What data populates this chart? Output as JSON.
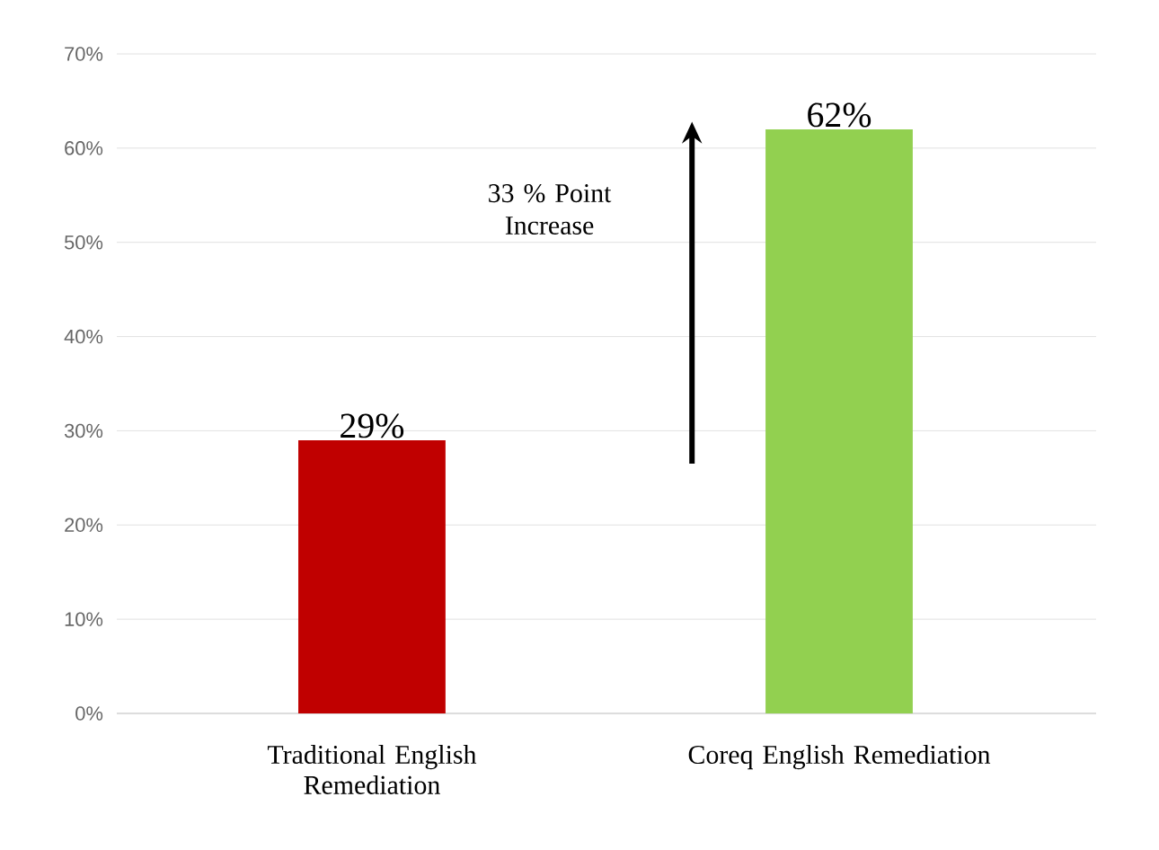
{
  "chart_data": {
    "type": "bar",
    "categories": [
      "Traditional English Remediation",
      "Coreq English Remediation"
    ],
    "values": [
      29,
      62
    ],
    "colors": [
      "#c00000",
      "#92d050"
    ],
    "value_labels": [
      "29%",
      "62%"
    ],
    "ylim": [
      0,
      70
    ],
    "yticks": [
      {
        "value": 0,
        "label": "0%"
      },
      {
        "value": 10,
        "label": "10%"
      },
      {
        "value": 20,
        "label": "20%"
      },
      {
        "value": 30,
        "label": "30%"
      },
      {
        "value": 40,
        "label": "40%"
      },
      {
        "value": 50,
        "label": "50%"
      },
      {
        "value": 60,
        "label": "60%"
      },
      {
        "value": 70,
        "label": "70%"
      }
    ],
    "grid": "y",
    "annotations": [
      "33 % Point Increase"
    ]
  }
}
